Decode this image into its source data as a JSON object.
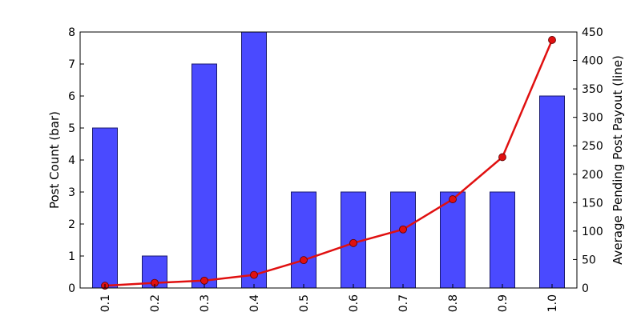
{
  "chart_data": {
    "type": "bar",
    "categories": [
      "0.1",
      "0.2",
      "0.3",
      "0.4",
      "0.5",
      "0.6",
      "0.7",
      "0.8",
      "0.9",
      "1.0"
    ],
    "series": [
      {
        "type": "bar",
        "axis": "left",
        "color": "#4a4aff",
        "edge_color": "#1a1a6e",
        "values": [
          5,
          1,
          7,
          8,
          3,
          3,
          3,
          3,
          3,
          6
        ]
      },
      {
        "type": "line",
        "axis": "right",
        "color": "#e01010",
        "marker": "circle",
        "values": [
          4,
          9,
          13,
          23,
          49,
          79,
          103,
          156,
          230,
          436
        ]
      }
    ],
    "ylabel": "Post Count (bar)",
    "ylabel_right": "Average Pending Post Payout (line)",
    "xlabel": "",
    "ylim": [
      0,
      8
    ],
    "ylim_right": [
      0,
      450
    ],
    "yticks": [
      0,
      1,
      2,
      3,
      4,
      5,
      6,
      7,
      8
    ],
    "yticks_right": [
      0,
      50,
      100,
      150,
      200,
      250,
      300,
      350,
      400,
      450
    ],
    "grid": false,
    "legend": "none"
  }
}
